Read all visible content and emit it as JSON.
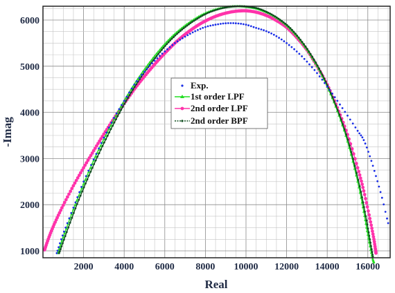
{
  "chart_data": {
    "type": "scatter",
    "title": "",
    "xlabel": "Real",
    "ylabel": "-Imag",
    "xlim": [
      0,
      17100
    ],
    "ylim": [
      850,
      6300
    ],
    "xticks": [
      2000,
      4000,
      6000,
      8000,
      10000,
      12000,
      14000,
      16000
    ],
    "yticks": [
      1000,
      2000,
      3000,
      4000,
      5000,
      6000
    ],
    "xtick_labels": [
      "2000",
      "4000",
      "6000",
      "8000",
      "10000",
      "12000",
      "14000",
      "16000"
    ],
    "ytick_labels": [
      "1000",
      "2000",
      "3000",
      "4000",
      "5000",
      "6000"
    ],
    "grid": true,
    "legend_position": "center",
    "series": [
      {
        "name": "Exp.",
        "color": "#1a2ee6",
        "marker": "dot",
        "x": [
          680,
          900,
          1200,
          1600,
          2000,
          2500,
          3000,
          3500,
          4000,
          4500,
          5000,
          5500,
          6000,
          6500,
          7000,
          7500,
          8000,
          8500,
          9000,
          9500,
          10000,
          10500,
          11000,
          11500,
          12000,
          12500,
          13000,
          13500,
          14000,
          14500,
          15000,
          15500,
          15800,
          16100,
          16400,
          16700,
          17000
        ],
        "y": [
          950,
          1250,
          1600,
          2050,
          2500,
          2980,
          3450,
          3880,
          4250,
          4600,
          4880,
          5120,
          5320,
          5500,
          5640,
          5760,
          5850,
          5900,
          5930,
          5930,
          5900,
          5830,
          5760,
          5650,
          5500,
          5320,
          5100,
          4850,
          4560,
          4250,
          3930,
          3600,
          3400,
          3050,
          2620,
          2150,
          1600
        ]
      },
      {
        "name": "1st order LPF",
        "color": "#22dd22",
        "marker": "triangle",
        "x": [
          720,
          1000,
          1500,
          2000,
          2500,
          3000,
          3500,
          4000,
          4500,
          5000,
          5500,
          6000,
          6500,
          7000,
          7500,
          8000,
          8500,
          9000,
          9500,
          10000,
          10500,
          11000,
          11500,
          12000,
          12500,
          13000,
          13500,
          14000,
          14500,
          15000,
          15500,
          15800,
          16000,
          16200,
          16300
        ],
        "y": [
          950,
          1300,
          1900,
          2450,
          2960,
          3420,
          3850,
          4250,
          4610,
          4930,
          5220,
          5480,
          5700,
          5880,
          6030,
          6150,
          6230,
          6280,
          6300,
          6290,
          6250,
          6170,
          6050,
          5880,
          5650,
          5360,
          5000,
          4560,
          4030,
          3370,
          2500,
          1850,
          1350,
          900,
          750
        ]
      },
      {
        "name": "2nd order LPF",
        "color": "#ff33aa",
        "marker": "circle",
        "x": [
          80,
          300,
          600,
          1000,
          1500,
          2000,
          2500,
          3000,
          3500,
          4000,
          4500,
          5000,
          5500,
          6000,
          6500,
          7000,
          7500,
          8000,
          8500,
          9000,
          9500,
          10000,
          10500,
          11000,
          11500,
          12000,
          12500,
          13000,
          13500,
          14000,
          14500,
          15000,
          15500,
          15800,
          16100,
          16300,
          16400
        ],
        "y": [
          1020,
          1300,
          1620,
          1990,
          2410,
          2800,
          3170,
          3530,
          3870,
          4190,
          4500,
          4780,
          5040,
          5280,
          5500,
          5690,
          5850,
          5980,
          6080,
          6150,
          6190,
          6200,
          6170,
          6100,
          5990,
          5840,
          5620,
          5350,
          5000,
          4600,
          4100,
          3520,
          2800,
          2300,
          1700,
          1250,
          950
        ]
      },
      {
        "name": "2nd order BPF",
        "color": "#0f4d1f",
        "marker": "dot",
        "x": [
          800,
          1100,
          1600,
          2100,
          2600,
          3100,
          3600,
          4100,
          4600,
          5100,
          5600,
          6100,
          6600,
          7100,
          7600,
          8100,
          8600,
          9100,
          9600,
          10100,
          10600,
          11100,
          11600,
          12100,
          12600,
          13100,
          13600,
          14100,
          14600,
          15100,
          15600,
          15900,
          16100,
          16250
        ],
        "y": [
          950,
          1320,
          1920,
          2460,
          2960,
          3420,
          3850,
          4250,
          4610,
          4930,
          5220,
          5480,
          5700,
          5880,
          6030,
          6150,
          6230,
          6280,
          6300,
          6290,
          6250,
          6160,
          6030,
          5860,
          5620,
          5320,
          4950,
          4500,
          3950,
          3280,
          2400,
          1750,
          1250,
          880
        ]
      }
    ]
  }
}
